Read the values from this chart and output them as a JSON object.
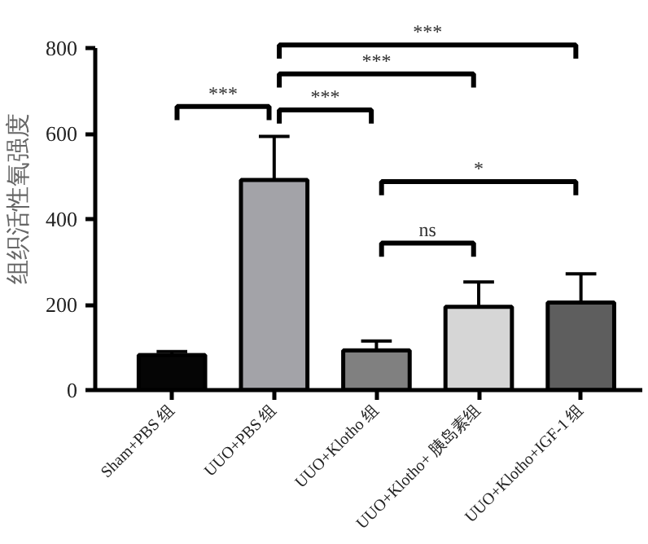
{
  "chart_data": {
    "type": "bar",
    "ylabel": "组织活性氧强度",
    "categories": [
      "Sham+PBS 组",
      "UUO+PBS 组",
      "UUO+Klotho 组",
      "UUO+Klotho+ 胰岛素组",
      "UUO+Klotho+IGF-1 组"
    ],
    "values": [
      82,
      492,
      93,
      195,
      205
    ],
    "errors": [
      8,
      102,
      22,
      58,
      67
    ],
    "colors": [
      "#050505",
      "#a3a3a8",
      "#808080",
      "#d6d6d6",
      "#5e5e5e"
    ],
    "ylim": [
      0,
      800
    ],
    "yticks": [
      0,
      200,
      400,
      600,
      800
    ],
    "annotations": [
      "***",
      "***",
      "***",
      "***",
      "ns",
      "*"
    ]
  }
}
